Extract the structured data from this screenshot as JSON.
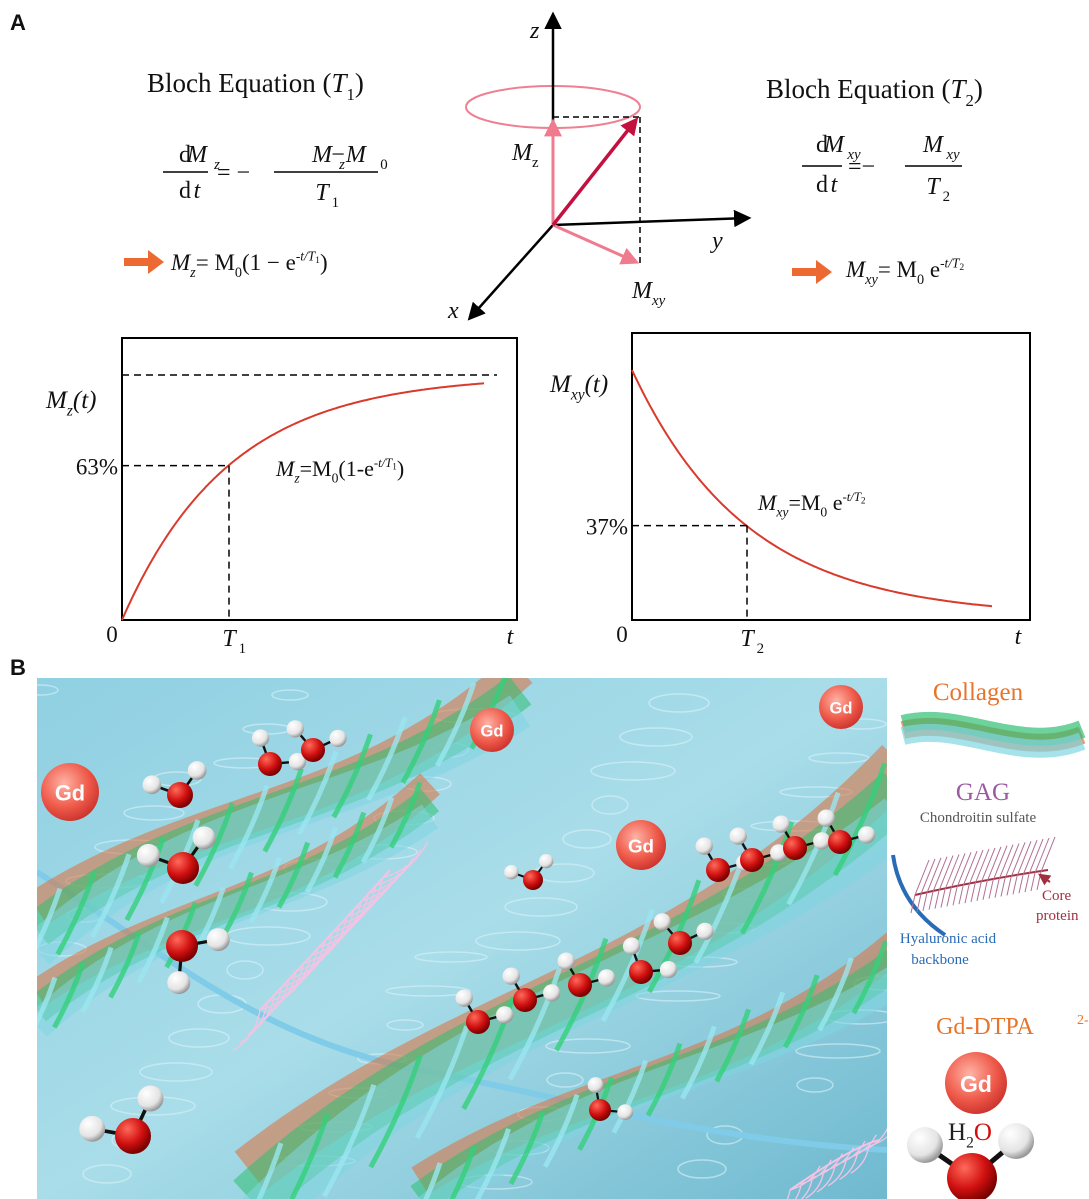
{
  "panel_a": {
    "label": "A",
    "t1_equation": {
      "heading": [
        "Bloch Equation (",
        "T",
        "1",
        ")"
      ],
      "numerator": [
        "d",
        "M",
        "z"
      ],
      "denominator": [
        "d",
        "t"
      ],
      "equals": "= −",
      "rhs_numerator": [
        "M",
        "z",
        "−M",
        "0"
      ],
      "rhs_denominator": [
        "T",
        "1"
      ],
      "solution": [
        "M",
        "z",
        "= M",
        "0",
        "(1 − e",
        "-t/T",
        "1",
        ")"
      ]
    },
    "vector_diagram": {
      "z": "z",
      "y": "y",
      "x": "x",
      "mz": [
        "M",
        "z"
      ],
      "mxy": [
        "M",
        "xy"
      ]
    },
    "t2_equation": {
      "heading": [
        "Bloch Equation (",
        "T",
        "2",
        ")"
      ],
      "numerator": [
        "d",
        "M",
        "xy"
      ],
      "denominator": [
        "d",
        "t"
      ],
      "equals": "=−",
      "rhs_numerator": [
        "M",
        "xy"
      ],
      "rhs_denominator": [
        "T",
        "2"
      ],
      "solution": [
        "M",
        "xy",
        "= M",
        "0",
        " e",
        "-t/T",
        "2"
      ]
    },
    "t1_plot": {
      "y_label": [
        "M",
        "z",
        "(t)"
      ],
      "tick": {
        "value": 63,
        "label": "63%"
      },
      "origin": "0",
      "x_tick": [
        "T",
        "1"
      ],
      "x_label": "t",
      "curve_label": [
        "M",
        "z",
        "=M",
        "0",
        "(1-e",
        "-t/T",
        "1",
        ")"
      ]
    },
    "t2_plot": {
      "y_label": [
        "M",
        "xy",
        "(t)"
      ],
      "tick": {
        "value": 37,
        "label": "37%"
      },
      "origin": "0",
      "x_tick": [
        "T",
        "2"
      ],
      "x_label": "t",
      "curve_label": [
        "M",
        "xy",
        "=M",
        "0",
        " e",
        "-t/T",
        "2"
      ]
    }
  },
  "panel_b": {
    "label": "B",
    "gd_labels": [
      "Gd",
      "Gd",
      "Gd",
      "Gd"
    ],
    "legend": {
      "collagen": "Collagen",
      "gag": "GAG",
      "chondroitin": "Chondroitin sulfate",
      "core_protein": [
        "Core",
        "protein"
      ],
      "hyaluronic": [
        "Hyaluronic acid",
        "backbone"
      ],
      "gd_dtpa": [
        "Gd-DTPA",
        "2-"
      ],
      "gd": "Gd",
      "water": [
        "H",
        "2",
        "O"
      ]
    }
  }
}
